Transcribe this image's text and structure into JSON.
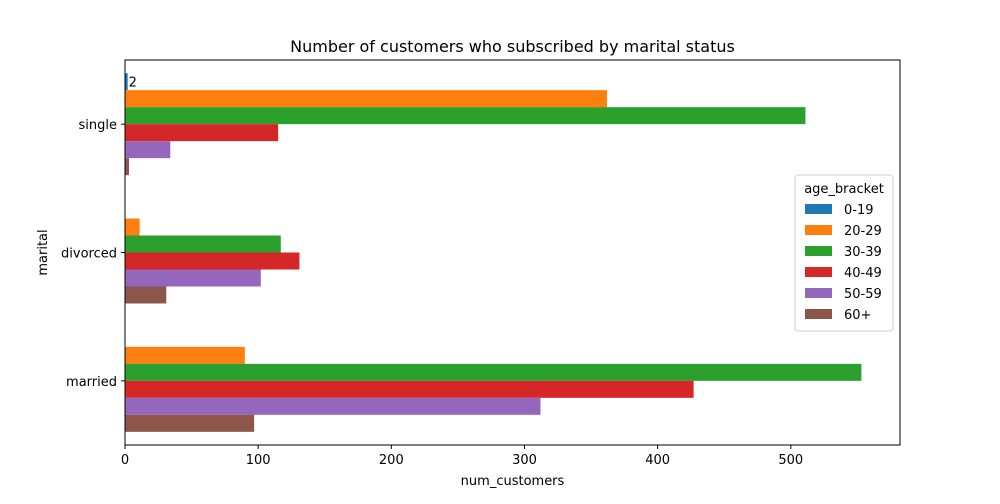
{
  "chart_data": {
    "type": "bar",
    "orientation": "horizontal",
    "title": "Number of customers who subscribed by marital status",
    "xlabel": "num_customers",
    "ylabel": "marital",
    "xlim": [
      0,
      582
    ],
    "xticks": [
      0,
      100,
      200,
      300,
      400,
      500
    ],
    "categories": [
      "single",
      "divorced",
      "married"
    ],
    "legend": {
      "title": "age_bracket",
      "position": "center-right"
    },
    "series": [
      {
        "name": "0-19",
        "color": "#1f77b4",
        "values": [
          2,
          0,
          0
        ]
      },
      {
        "name": "20-29",
        "color": "#ff7f0e",
        "values": [
          362,
          11,
          90
        ]
      },
      {
        "name": "30-39",
        "color": "#2ca02c",
        "values": [
          511,
          117,
          553
        ]
      },
      {
        "name": "40-49",
        "color": "#d62728",
        "values": [
          115,
          131,
          427
        ]
      },
      {
        "name": "50-59",
        "color": "#9467bd",
        "values": [
          34,
          102,
          312
        ]
      },
      {
        "name": "60+",
        "color": "#8c564b",
        "values": [
          3,
          31,
          97
        ]
      }
    ],
    "annotations": [
      {
        "category": "single",
        "series": "0-19",
        "text": "2"
      }
    ]
  }
}
